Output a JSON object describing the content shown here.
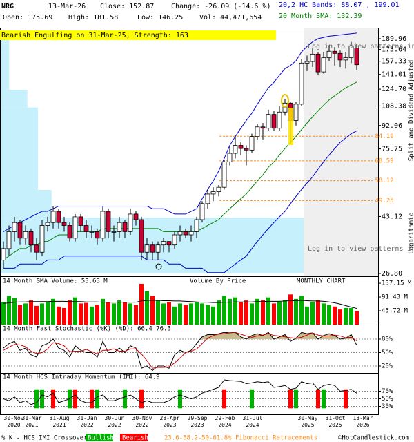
{
  "header": {
    "symbol": "NRG",
    "date": "13-Mar-26",
    "close": "Close: 152.87",
    "change": "Change: -26.09 (-14.6 %)",
    "bands": "20,2 HC Bands: 88.07 , 199.01",
    "open": "Open: 175.69",
    "high": "High: 181.58",
    "low": "Low: 146.25",
    "volume": "Vol: 44,471,654",
    "sma": "20 Month SMA: 132.39",
    "adjusted": "Split and Dividend Adjusted",
    "scale": "Logarithmic"
  },
  "chart_data": [
    {
      "type": "candlestick",
      "title": "Bearish Engulfing on 31-Mar-25, Strength: 163",
      "log_scale": true,
      "ylim": [
        26.8,
        189.96
      ],
      "yticks": [
        189.96,
        173.64,
        157.33,
        141.01,
        {
          "value": 124.7,
          "label": "124.70"
        },
        108.38,
        92.06,
        75.75,
        43.12,
        {
          "value": 26.8,
          "label": "26.80"
        }
      ],
      "open": [
        30,
        33,
        38,
        41,
        36,
        38,
        34,
        32,
        40,
        41,
        45,
        41,
        40,
        36,
        43,
        40,
        38,
        38,
        36,
        45,
        38,
        38,
        41,
        38,
        44,
        42,
        32,
        34,
        32,
        34,
        35,
        34,
        37,
        38,
        37,
        38,
        42,
        48,
        52,
        53,
        55,
        68,
        73,
        78,
        76,
        75,
        84,
        91,
        90,
        101,
        90,
        103,
        111,
        96,
        110,
        155,
        157,
        167,
        144,
        162,
        171,
        168,
        159,
        162,
        175.69
      ],
      "high": [
        35,
        40,
        43,
        42,
        40,
        39,
        36,
        42,
        43,
        47,
        46,
        43,
        41,
        44,
        44,
        42,
        40,
        39,
        47,
        46,
        40,
        43,
        42,
        46,
        45,
        43,
        36,
        35,
        35,
        36,
        35,
        38,
        40,
        39,
        40,
        43,
        49,
        54,
        55,
        56,
        69,
        77,
        84,
        80,
        78,
        86,
        93,
        94,
        105,
        104,
        108,
        115,
        112,
        112,
        160,
        165,
        175,
        170,
        170,
        180,
        177,
        172,
        170,
        185,
        181.58
      ],
      "low": [
        28,
        31,
        35,
        34,
        34,
        32,
        30,
        31,
        38,
        39,
        39,
        38,
        35,
        35,
        38,
        36,
        36,
        34,
        35,
        36,
        35,
        36,
        36,
        37,
        40,
        30,
        30,
        30,
        30,
        32,
        32,
        33,
        35,
        36,
        35,
        36,
        41,
        46,
        49,
        51,
        54,
        66,
        70,
        72,
        66,
        73,
        82,
        82,
        88,
        88,
        88,
        100,
        79,
        92,
        108,
        145,
        150,
        140,
        142,
        158,
        152,
        150,
        148,
        155,
        146.25
      ],
      "close": [
        33,
        38,
        41,
        36,
        38,
        34,
        32,
        40,
        41,
        45,
        41,
        40,
        36,
        43,
        40,
        38,
        38,
        36,
        45,
        38,
        38,
        41,
        38,
        44,
        42,
        32,
        34,
        32,
        34,
        35,
        34,
        37,
        38,
        37,
        38,
        42,
        48,
        52,
        53,
        55,
        68,
        73,
        78,
        76,
        75,
        84,
        91,
        90,
        101,
        90,
        103,
        111,
        96,
        110,
        155,
        157,
        167,
        144,
        162,
        171,
        168,
        159,
        162,
        179,
        152.87
      ],
      "up_color": "#ffffff",
      "down_color": "#cc0033",
      "bands": {
        "color": "#0000cc",
        "upper": [
          38,
          39,
          40,
          41,
          42,
          43,
          44,
          45,
          45,
          46,
          47,
          47,
          47,
          47,
          47,
          47,
          47,
          47,
          47,
          47,
          47,
          47,
          47,
          47,
          47,
          47,
          47,
          46,
          46,
          46,
          45,
          44,
          44,
          44,
          45,
          46,
          50,
          54,
          58,
          63,
          70,
          78,
          84,
          90,
          96,
          102,
          110,
          118,
          126,
          132,
          140,
          148,
          152,
          158,
          170,
          178,
          185,
          190,
          192,
          194,
          195,
          196,
          197,
          198,
          199.01
        ],
        "lower": [
          28,
          28,
          28,
          29,
          29,
          29,
          29,
          29,
          30,
          30,
          30,
          31,
          31,
          31,
          31,
          31,
          31,
          31,
          31,
          31,
          31,
          31,
          31,
          31,
          31,
          31,
          30,
          30,
          30,
          30,
          29,
          29,
          29,
          28,
          28,
          28,
          28,
          27,
          27,
          27,
          27,
          28,
          29,
          30,
          31,
          33,
          35,
          37,
          39,
          41,
          43,
          45,
          48,
          51,
          54,
          57,
          60,
          64,
          68,
          72,
          76,
          80,
          83,
          86,
          88.07
        ]
      },
      "sma": {
        "color": "#008000",
        "values": [
          30,
          31,
          32,
          33,
          33,
          34,
          34,
          35,
          35,
          36,
          37,
          37,
          37,
          38,
          38,
          38,
          38,
          38,
          39,
          39,
          39,
          39,
          39,
          39,
          39,
          39,
          39,
          39,
          39,
          38,
          38,
          38,
          38,
          38,
          38,
          38,
          39,
          40,
          41,
          42,
          44,
          46,
          48,
          50,
          52,
          55,
          58,
          61,
          65,
          68,
          72,
          76,
          80,
          84,
          89,
          94,
          99,
          104,
          109,
          114,
          118,
          122,
          126,
          129,
          132.39
        ]
      },
      "volume_by_price": {
        "color": "#c6f0fb",
        "bins": [
          26.8,
          42.7,
          53.8,
          65.8,
          87.8,
          107,
          124,
          170,
          189.96
        ],
        "values": [
          100,
          17,
          12.5,
          12.5,
          12.5,
          9,
          3,
          3
        ]
      },
      "fibonacci": {
        "color": "#ff8c1a",
        "levels": [
          84.19,
          68.59,
          58.12,
          49.25
        ],
        "label": "23.6-38.2-50-61.8% Fibonacci Retracements"
      },
      "pattern_note": "Log in to view patterns in this area",
      "shade_color": "#efefef",
      "grid": false
    },
    {
      "type": "bar",
      "title": "14 Month SMA Volume: 53.63 M",
      "label": "Volume By Price",
      "chart_label": "MONTHLY CHART",
      "ylim": [
        0,
        151
      ],
      "yticks": [
        {
          "value": 137.15,
          "label": "137.15 M"
        },
        {
          "value": 91.43,
          "label": "91.43 M"
        },
        {
          "value": 45.72,
          "label": "45.72 M"
        }
      ],
      "values": [
        75,
        95,
        88,
        65,
        70,
        80,
        62,
        70,
        75,
        85,
        60,
        55,
        80,
        90,
        70,
        72,
        60,
        65,
        85,
        75,
        70,
        80,
        75,
        70,
        65,
        135,
        110,
        95,
        80,
        70,
        75,
        60,
        70,
        65,
        70,
        75,
        70,
        65,
        60,
        80,
        95,
        85,
        90,
        75,
        80,
        70,
        85,
        80,
        90,
        70,
        75,
        80,
        100,
        85,
        95,
        60,
        75,
        80,
        70,
        65,
        60,
        50,
        55,
        55,
        44.47
      ],
      "sma": [
        70,
        72,
        74,
        75,
        75,
        76,
        76,
        76,
        76,
        77,
        77,
        77,
        76,
        76,
        76,
        75,
        75,
        75,
        74,
        74,
        74,
        74,
        74,
        74,
        74,
        78,
        80,
        80,
        80,
        79,
        79,
        78,
        78,
        77,
        76,
        75,
        74,
        74,
        73,
        73,
        74,
        74,
        75,
        75,
        75,
        75,
        76,
        76,
        77,
        77,
        77,
        78,
        79,
        79,
        80,
        79,
        78,
        78,
        77,
        75,
        72,
        68,
        63,
        58,
        53.63
      ],
      "up_color": "#00b000",
      "down_color": "#ff0000",
      "sma_color": "#000000"
    },
    {
      "type": "line",
      "title": "14 Month Fast Stochastic (%K) (%D): 66.4 76.3",
      "ylim": [
        0,
        100
      ],
      "yticks": [
        {
          "value": 80,
          "label": "80%"
        },
        {
          "value": 50,
          "label": "50%"
        },
        {
          "value": 20,
          "label": "20%"
        }
      ],
      "grid": true,
      "overbought_level": 80,
      "overbought_color": "#c9bc8e",
      "series": [
        {
          "color": "#000000",
          "values": [
            60,
            70,
            75,
            55,
            60,
            45,
            40,
            65,
            70,
            80,
            60,
            55,
            40,
            65,
            55,
            50,
            50,
            40,
            75,
            50,
            50,
            60,
            50,
            65,
            60,
            15,
            20,
            10,
            20,
            20,
            15,
            45,
            55,
            50,
            55,
            70,
            85,
            90,
            90,
            92,
            95,
            94,
            95,
            85,
            80,
            88,
            92,
            88,
            95,
            80,
            85,
            90,
            75,
            82,
            95,
            92,
            94,
            80,
            88,
            92,
            88,
            80,
            82,
            90,
            66.4
          ]
        },
        {
          "color": "#cc0000",
          "values": [
            55,
            62,
            68,
            67,
            63,
            53,
            48,
            50,
            58,
            72,
            70,
            65,
            52,
            53,
            53,
            57,
            52,
            47,
            55,
            55,
            58,
            53,
            53,
            58,
            58,
            47,
            32,
            15,
            17,
            17,
            18,
            27,
            38,
            50,
            53,
            58,
            70,
            82,
            88,
            91,
            92,
            94,
            95,
            91,
            87,
            84,
            87,
            89,
            92,
            88,
            87,
            85,
            83,
            82,
            84,
            89,
            94,
            89,
            87,
            87,
            89,
            87,
            83,
            84,
            76.3
          ]
        }
      ]
    },
    {
      "type": "line",
      "title": "14 Month HCS Intraday Momentum (IMI): 64.9",
      "ylim": [
        0,
        100
      ],
      "yticks": [
        {
          "value": 70,
          "label": "70%"
        },
        {
          "value": 50,
          "label": "50%"
        },
        {
          "value": 30,
          "label": "30%"
        }
      ],
      "grid": true,
      "series": [
        {
          "color": "#000000",
          "values": [
            50,
            45,
            55,
            40,
            45,
            35,
            40,
            60,
            55,
            65,
            40,
            45,
            50,
            60,
            45,
            40,
            40,
            55,
            60,
            45,
            45,
            50,
            55,
            60,
            50,
            40,
            45,
            40,
            40,
            40,
            45,
            55,
            60,
            55,
            50,
            55,
            65,
            70,
            75,
            80,
            100,
            98,
            97,
            96,
            90,
            92,
            95,
            93,
            95,
            80,
            82,
            85,
            75,
            78,
            95,
            90,
            92,
            75,
            85,
            88,
            85,
            70,
            72,
            75,
            64.9
          ]
        }
      ],
      "bullish_signals": [
        6,
        7,
        12,
        17,
        22,
        32,
        45,
        53,
        58
      ],
      "bearish_signals": [
        9,
        13,
        16,
        25,
        40,
        52,
        57,
        62
      ],
      "bullish_color": "#00b000",
      "bearish_color": "#ff0000",
      "categories": [
        "30-Nov 2020",
        null,
        null,
        null,
        "31-Mar 2021",
        null,
        null,
        null,
        null,
        "31-Aug 2021",
        null,
        null,
        null,
        null,
        "31-Jan 2022",
        null,
        null,
        null,
        null,
        "30-Jun 2022",
        null,
        null,
        null,
        null,
        "30-Nov 2022",
        null,
        null,
        null,
        null,
        "28-Apr 2023",
        null,
        null,
        null,
        null,
        "29-Sep 2023",
        null,
        null,
        null,
        null,
        "29-Feb 2024",
        null,
        null,
        null,
        null,
        "31-Jul 2024",
        null,
        null,
        null,
        null,
        null,
        null,
        null,
        null,
        null,
        "30-May 2025",
        null,
        null,
        null,
        null,
        "31-Oct 2025",
        null,
        null,
        null,
        null,
        "13-Mar 2026"
      ]
    }
  ],
  "footer": {
    "crossover": "% K - HCS IMI Crossover:",
    "bullish": "Bullish",
    "bearish": "Bearish",
    "copyright": "©HotCandlestick.com"
  }
}
